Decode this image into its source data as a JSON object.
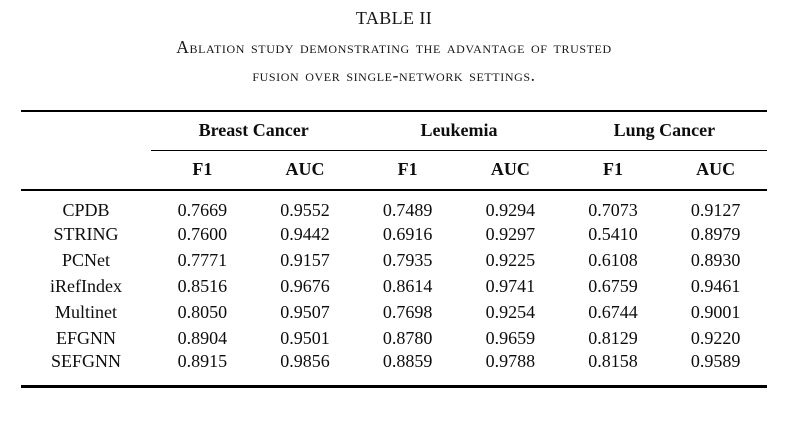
{
  "page": {
    "title": "TABLE II",
    "caption_line1": "Ablation study demonstrating the advantage of trusted",
    "caption_line2": "fusion over single-network settings."
  },
  "colors": {
    "background": "#ffffff",
    "text": "#0d0d0d",
    "rule": "#000000"
  },
  "table": {
    "groups": [
      {
        "label": "Breast Cancer"
      },
      {
        "label": "Leukemia"
      },
      {
        "label": "Lung Cancer"
      }
    ],
    "subheaders": [
      "F1",
      "AUC",
      "F1",
      "AUC",
      "F1",
      "AUC"
    ],
    "rows": [
      {
        "label": "CPDB",
        "values": [
          "0.7669",
          "0.9552",
          "0.7489",
          "0.9294",
          "0.7073",
          "0.9127"
        ]
      },
      {
        "label": "STRING",
        "values": [
          "0.7600",
          "0.9442",
          "0.6916",
          "0.9297",
          "0.5410",
          "0.8979"
        ]
      },
      {
        "label": "PCNet",
        "values": [
          "0.7771",
          "0.9157",
          "0.7935",
          "0.9225",
          "0.6108",
          "0.8930"
        ]
      },
      {
        "label": "iRefIndex",
        "values": [
          "0.8516",
          "0.9676",
          "0.8614",
          "0.9741",
          "0.6759",
          "0.9461"
        ]
      },
      {
        "label": "Multinet",
        "values": [
          "0.8050",
          "0.9507",
          "0.7698",
          "0.9254",
          "0.6744",
          "0.9001"
        ]
      },
      {
        "label": "EFGNN",
        "values": [
          "0.8904",
          "0.9501",
          "0.8780",
          "0.9659",
          "0.8129",
          "0.9220"
        ]
      },
      {
        "label": "SEFGNN",
        "values": [
          "0.8915",
          "0.9856",
          "0.8859",
          "0.9788",
          "0.8158",
          "0.9589"
        ]
      }
    ]
  }
}
